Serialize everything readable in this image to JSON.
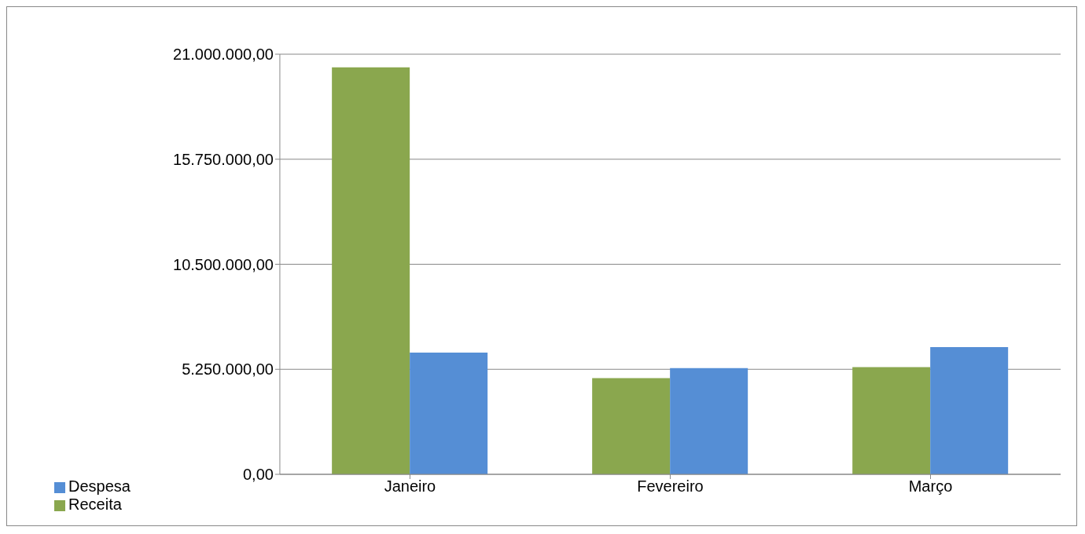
{
  "chart_data": {
    "type": "bar",
    "categories": [
      "Janeiro",
      "Fevereiro",
      "Março"
    ],
    "series": [
      {
        "name": "Receita",
        "color": "#8aa74e",
        "values": [
          20340000,
          4810000,
          5360000
        ]
      },
      {
        "name": "Despesa",
        "color": "#558ed5",
        "values": [
          6080000,
          5310000,
          6360000
        ]
      }
    ],
    "ylim": [
      0,
      21000000
    ],
    "yticks": [
      {
        "value": 0,
        "label": "0,00"
      },
      {
        "value": 5250000,
        "label": "5.250.000,00"
      },
      {
        "value": 10500000,
        "label": "10.500.000,00"
      },
      {
        "value": 15750000,
        "label": "15.750.000,00"
      },
      {
        "value": 21000000,
        "label": "21.000.000,00"
      }
    ],
    "grid": "y",
    "legend": "bottom left"
  }
}
